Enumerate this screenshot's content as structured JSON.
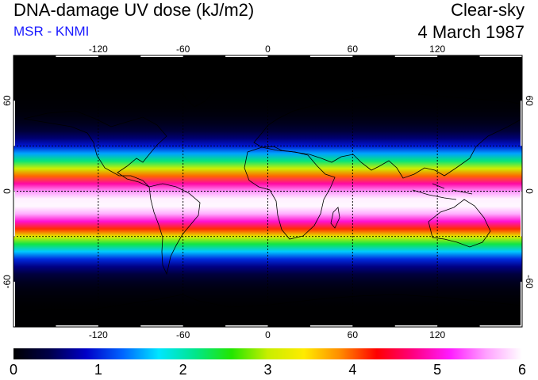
{
  "header": {
    "title": "DNA-damage UV dose (kJ/m2)",
    "source": "MSR - KNMI",
    "condition": "Clear-sky",
    "date": "4 March 1987"
  },
  "colors": {
    "source_text": "#1a1aff",
    "colormap": [
      "#000000",
      "#00004a",
      "#0000c8",
      "#0064ff",
      "#00e6ff",
      "#00e68c",
      "#22e600",
      "#c8ee00",
      "#ffeb00",
      "#ff8a00",
      "#ff0000",
      "#ff0080",
      "#ff1aff",
      "#ffa0ff",
      "#ffffff"
    ]
  },
  "map": {
    "projection": "equirectangular",
    "lon_range": [
      -180,
      180
    ],
    "lat_range": [
      -90,
      90
    ],
    "lon_ticks": [
      -120,
      -60,
      0,
      60,
      120
    ],
    "lat_ticks": [
      60,
      0,
      -60
    ],
    "lon_tick_labels": [
      "-120",
      "-60",
      "0",
      "60",
      "120"
    ],
    "lat_tick_labels": [
      "60",
      "0",
      "-60"
    ],
    "gridlines": "dashed",
    "dashed_lats": [
      -30,
      0,
      30
    ],
    "field_peak_lat": -8,
    "field_peak_value": 6
  },
  "colorbar": {
    "min": 0,
    "max": 6,
    "tick_labels": [
      "0",
      "1",
      "2",
      "3",
      "4",
      "5",
      "6"
    ]
  }
}
